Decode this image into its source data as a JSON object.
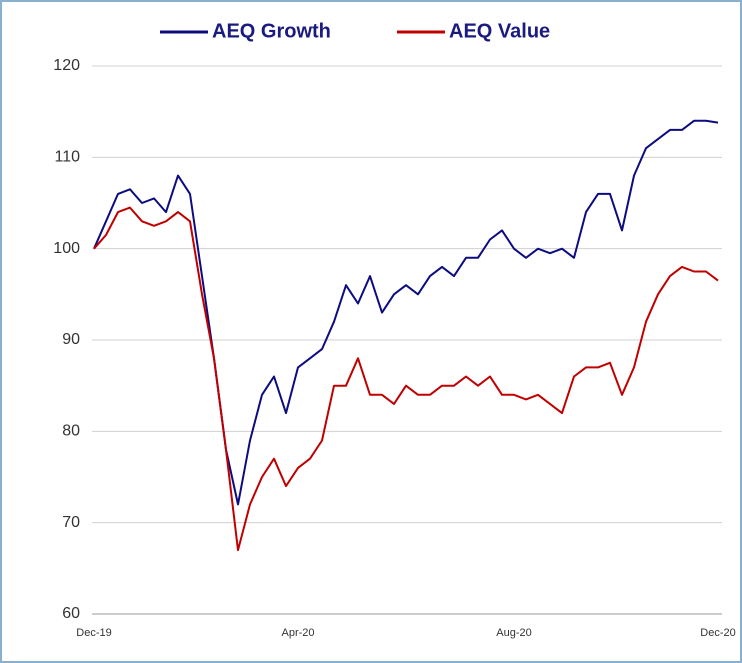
{
  "chart_data": {
    "type": "line",
    "categories": [
      "Dec-19",
      null,
      null,
      null,
      null,
      null,
      null,
      null,
      null,
      null,
      null,
      null,
      null,
      null,
      null,
      null,
      null,
      "Apr-20",
      null,
      null,
      null,
      null,
      null,
      null,
      null,
      null,
      null,
      null,
      null,
      null,
      null,
      null,
      null,
      null,
      null,
      "Aug-20",
      null,
      null,
      null,
      null,
      null,
      null,
      null,
      null,
      null,
      null,
      null,
      null,
      null,
      null,
      null,
      null,
      "Dec-20"
    ],
    "series": [
      {
        "name": "AEQ Growth",
        "color": "#0c0c80",
        "values": [
          100,
          103,
          106,
          106.5,
          105,
          105.5,
          104,
          108,
          106,
          97,
          88,
          78,
          72,
          79,
          84,
          86,
          82,
          87,
          88,
          89,
          92,
          96,
          94,
          97,
          93,
          95,
          96,
          95,
          97,
          98,
          97,
          99,
          99,
          101,
          102,
          100,
          99,
          100,
          99.5,
          100,
          99,
          104,
          106,
          106,
          102,
          108,
          111,
          112,
          113,
          113,
          114,
          114,
          113.8
        ]
      },
      {
        "name": "AEQ Value",
        "color": "#c00000",
        "values": [
          100,
          101.5,
          104,
          104.5,
          103,
          102.5,
          103,
          104,
          103,
          95,
          88,
          78,
          67,
          72,
          75,
          77,
          74,
          76,
          77,
          79,
          85,
          85,
          88,
          84,
          84,
          83,
          85,
          84,
          84,
          85,
          85,
          86,
          85,
          86,
          84,
          84,
          83.5,
          84,
          83,
          82,
          86,
          87,
          87,
          87.5,
          84,
          87,
          92,
          95,
          97,
          98,
          97.5,
          97.5,
          96.5
        ]
      }
    ],
    "ylim": [
      60,
      120
    ],
    "yticks": [
      60,
      70,
      80,
      90,
      100,
      110,
      120
    ],
    "grid": true,
    "legend": "top"
  }
}
